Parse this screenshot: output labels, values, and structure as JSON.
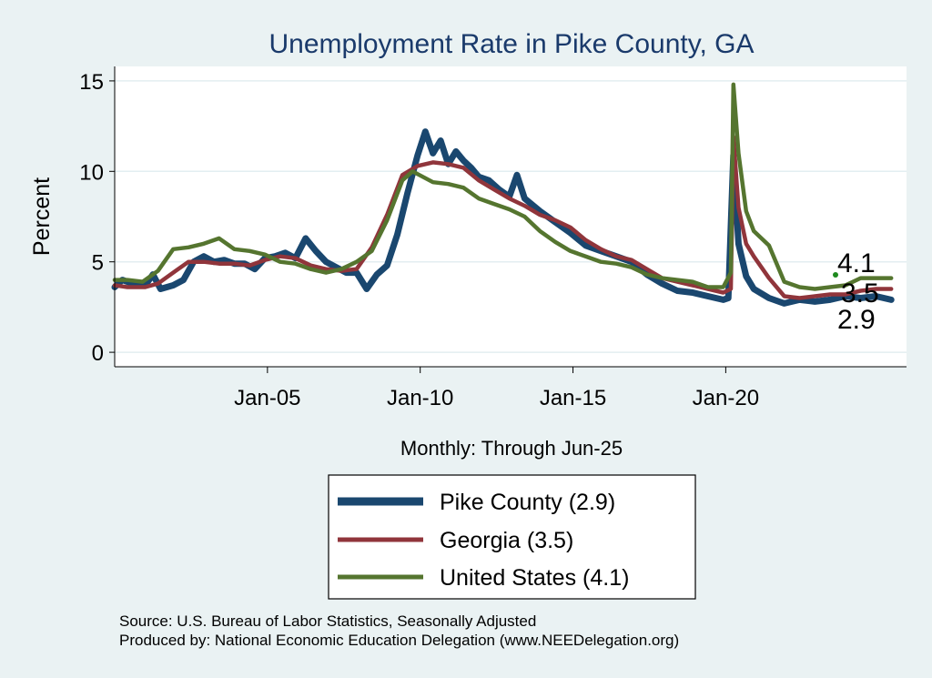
{
  "colors": {
    "background": "#eaf2f3",
    "plot_bg": "#ffffff",
    "grid": "#e3eef1",
    "pike": "#1a476f",
    "georgia": "#90353b",
    "us": "#55752f",
    "title": "#1a3a6b"
  },
  "source_lines": [
    "Source: U.S. Bureau of Labor Statistics, Seasonally Adjusted",
    "Produced by: National Economic Education Delegation (www.NEEDelegation.org)"
  ],
  "chart_data": {
    "type": "line",
    "title": "Unemployment Rate in Pike  County, GA",
    "xlabel": "Monthly: Through Jun-25",
    "ylabel": "Percent",
    "xlim": [
      "2000-01",
      "2025-12"
    ],
    "ylim": [
      -0.8,
      15.8
    ],
    "y_ticks": [
      0,
      5,
      10,
      15
    ],
    "x_ticks": [
      {
        "date": "2005-01",
        "label": "Jan-05"
      },
      {
        "date": "2010-01",
        "label": "Jan-10"
      },
      {
        "date": "2015-01",
        "label": "Jan-15"
      },
      {
        "date": "2020-01",
        "label": "Jan-20"
      }
    ],
    "grid": true,
    "legend_position": "bottom",
    "end_labels": [
      "4.1",
      "3.5",
      "2.9"
    ],
    "series": [
      {
        "name": "Pike  County (2.9)",
        "key": "pike",
        "points": [
          [
            "2000-01",
            3.6
          ],
          [
            "2000-04",
            4.0
          ],
          [
            "2000-08",
            3.8
          ],
          [
            "2001-01",
            3.7
          ],
          [
            "2001-04",
            4.3
          ],
          [
            "2001-07",
            3.5
          ],
          [
            "2001-12",
            3.7
          ],
          [
            "2002-04",
            4.0
          ],
          [
            "2002-08",
            5.0
          ],
          [
            "2002-12",
            5.3
          ],
          [
            "2003-04",
            5.0
          ],
          [
            "2003-08",
            5.1
          ],
          [
            "2003-12",
            4.9
          ],
          [
            "2004-04",
            4.9
          ],
          [
            "2004-08",
            4.6
          ],
          [
            "2004-12",
            5.2
          ],
          [
            "2005-04",
            5.3
          ],
          [
            "2005-08",
            5.5
          ],
          [
            "2005-12",
            5.2
          ],
          [
            "2006-04",
            6.3
          ],
          [
            "2006-08",
            5.6
          ],
          [
            "2006-12",
            5.0
          ],
          [
            "2007-04",
            4.7
          ],
          [
            "2007-08",
            4.4
          ],
          [
            "2007-12",
            4.4
          ],
          [
            "2008-04",
            3.5
          ],
          [
            "2008-08",
            4.3
          ],
          [
            "2008-12",
            4.8
          ],
          [
            "2009-04",
            6.5
          ],
          [
            "2009-08",
            8.8
          ],
          [
            "2009-12",
            10.9
          ],
          [
            "2010-03",
            12.2
          ],
          [
            "2010-06",
            11.0
          ],
          [
            "2010-09",
            11.7
          ],
          [
            "2010-12",
            10.4
          ],
          [
            "2011-03",
            11.1
          ],
          [
            "2011-06",
            10.6
          ],
          [
            "2011-09",
            10.2
          ],
          [
            "2011-12",
            9.7
          ],
          [
            "2012-04",
            9.5
          ],
          [
            "2012-08",
            9.0
          ],
          [
            "2012-12",
            8.6
          ],
          [
            "2013-03",
            9.8
          ],
          [
            "2013-06",
            8.5
          ],
          [
            "2013-12",
            7.8
          ],
          [
            "2014-06",
            7.2
          ],
          [
            "2014-12",
            6.6
          ],
          [
            "2015-06",
            5.9
          ],
          [
            "2015-12",
            5.6
          ],
          [
            "2016-06",
            5.3
          ],
          [
            "2016-12",
            5.0
          ],
          [
            "2017-06",
            4.3
          ],
          [
            "2017-12",
            3.8
          ],
          [
            "2018-06",
            3.4
          ],
          [
            "2018-12",
            3.3
          ],
          [
            "2019-06",
            3.1
          ],
          [
            "2019-12",
            2.9
          ],
          [
            "2020-02",
            3.0
          ],
          [
            "2020-04",
            10.9
          ],
          [
            "2020-06",
            6.0
          ],
          [
            "2020-09",
            4.2
          ],
          [
            "2020-12",
            3.5
          ],
          [
            "2021-06",
            3.0
          ],
          [
            "2021-12",
            2.7
          ],
          [
            "2022-06",
            2.9
          ],
          [
            "2022-12",
            2.8
          ],
          [
            "2023-06",
            2.9
          ],
          [
            "2023-12",
            3.1
          ],
          [
            "2024-06",
            3.0
          ],
          [
            "2024-12",
            3.1
          ],
          [
            "2025-06",
            2.9
          ]
        ]
      },
      {
        "name": "Georgia (3.5)",
        "key": "georgia",
        "points": [
          [
            "2000-01",
            3.7
          ],
          [
            "2000-06",
            3.6
          ],
          [
            "2001-01",
            3.6
          ],
          [
            "2001-06",
            3.8
          ],
          [
            "2002-01",
            4.5
          ],
          [
            "2002-06",
            5.0
          ],
          [
            "2002-12",
            5.0
          ],
          [
            "2003-06",
            4.9
          ],
          [
            "2003-12",
            4.9
          ],
          [
            "2004-06",
            4.8
          ],
          [
            "2004-12",
            5.1
          ],
          [
            "2005-06",
            5.3
          ],
          [
            "2005-12",
            5.2
          ],
          [
            "2006-06",
            4.8
          ],
          [
            "2006-12",
            4.6
          ],
          [
            "2007-06",
            4.5
          ],
          [
            "2007-12",
            4.6
          ],
          [
            "2008-06",
            5.8
          ],
          [
            "2008-12",
            7.6
          ],
          [
            "2009-06",
            9.8
          ],
          [
            "2009-12",
            10.3
          ],
          [
            "2010-06",
            10.5
          ],
          [
            "2010-12",
            10.4
          ],
          [
            "2011-06",
            10.2
          ],
          [
            "2011-12",
            9.5
          ],
          [
            "2012-06",
            9.0
          ],
          [
            "2012-12",
            8.5
          ],
          [
            "2013-06",
            8.1
          ],
          [
            "2013-12",
            7.6
          ],
          [
            "2014-06",
            7.3
          ],
          [
            "2014-12",
            6.9
          ],
          [
            "2015-06",
            6.2
          ],
          [
            "2015-12",
            5.7
          ],
          [
            "2016-06",
            5.3
          ],
          [
            "2016-12",
            5.1
          ],
          [
            "2017-06",
            4.6
          ],
          [
            "2017-12",
            4.1
          ],
          [
            "2018-06",
            3.9
          ],
          [
            "2018-12",
            3.7
          ],
          [
            "2019-06",
            3.5
          ],
          [
            "2019-12",
            3.3
          ],
          [
            "2020-03",
            3.5
          ],
          [
            "2020-04",
            11.9
          ],
          [
            "2020-06",
            8.0
          ],
          [
            "2020-09",
            6.0
          ],
          [
            "2020-12",
            5.3
          ],
          [
            "2021-06",
            4.1
          ],
          [
            "2021-12",
            3.1
          ],
          [
            "2022-06",
            3.0
          ],
          [
            "2022-12",
            3.1
          ],
          [
            "2023-06",
            3.2
          ],
          [
            "2023-12",
            3.2
          ],
          [
            "2024-06",
            3.4
          ],
          [
            "2024-12",
            3.5
          ],
          [
            "2025-06",
            3.5
          ]
        ]
      },
      {
        "name": "United States (4.1)",
        "key": "us",
        "points": [
          [
            "2000-01",
            4.0
          ],
          [
            "2000-06",
            4.0
          ],
          [
            "2000-12",
            3.9
          ],
          [
            "2001-06",
            4.5
          ],
          [
            "2001-12",
            5.7
          ],
          [
            "2002-06",
            5.8
          ],
          [
            "2002-12",
            6.0
          ],
          [
            "2003-06",
            6.3
          ],
          [
            "2003-12",
            5.7
          ],
          [
            "2004-06",
            5.6
          ],
          [
            "2004-12",
            5.4
          ],
          [
            "2005-06",
            5.0
          ],
          [
            "2005-12",
            4.9
          ],
          [
            "2006-06",
            4.6
          ],
          [
            "2006-12",
            4.4
          ],
          [
            "2007-06",
            4.6
          ],
          [
            "2007-12",
            5.0
          ],
          [
            "2008-06",
            5.6
          ],
          [
            "2008-12",
            7.3
          ],
          [
            "2009-06",
            9.5
          ],
          [
            "2009-10",
            10.0
          ],
          [
            "2010-06",
            9.4
          ],
          [
            "2010-12",
            9.3
          ],
          [
            "2011-06",
            9.1
          ],
          [
            "2011-12",
            8.5
          ],
          [
            "2012-06",
            8.2
          ],
          [
            "2012-12",
            7.9
          ],
          [
            "2013-06",
            7.5
          ],
          [
            "2013-12",
            6.7
          ],
          [
            "2014-06",
            6.1
          ],
          [
            "2014-12",
            5.6
          ],
          [
            "2015-06",
            5.3
          ],
          [
            "2015-12",
            5.0
          ],
          [
            "2016-06",
            4.9
          ],
          [
            "2016-12",
            4.7
          ],
          [
            "2017-06",
            4.3
          ],
          [
            "2017-12",
            4.1
          ],
          [
            "2018-06",
            4.0
          ],
          [
            "2018-12",
            3.9
          ],
          [
            "2019-06",
            3.6
          ],
          [
            "2019-12",
            3.6
          ],
          [
            "2020-03",
            4.4
          ],
          [
            "2020-04",
            14.8
          ],
          [
            "2020-06",
            11.0
          ],
          [
            "2020-09",
            7.8
          ],
          [
            "2020-12",
            6.7
          ],
          [
            "2021-06",
            5.9
          ],
          [
            "2021-12",
            3.9
          ],
          [
            "2022-06",
            3.6
          ],
          [
            "2022-12",
            3.5
          ],
          [
            "2023-06",
            3.6
          ],
          [
            "2023-12",
            3.7
          ],
          [
            "2024-06",
            4.1
          ],
          [
            "2024-12",
            4.1
          ],
          [
            "2025-06",
            4.1
          ]
        ]
      }
    ]
  }
}
